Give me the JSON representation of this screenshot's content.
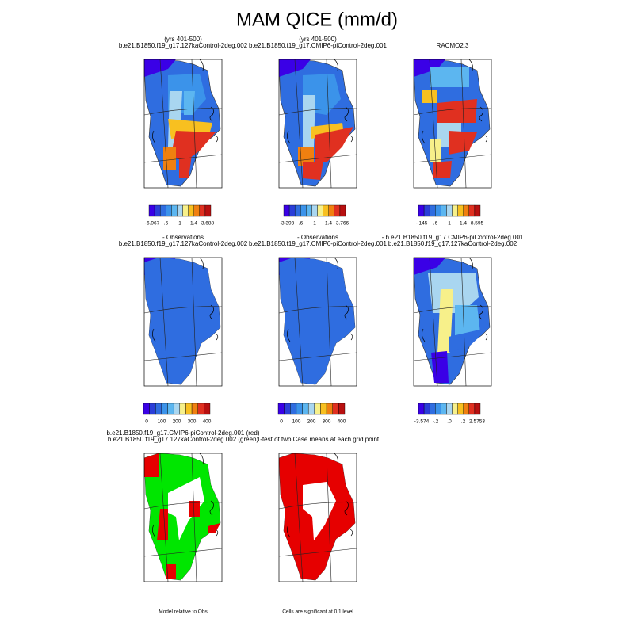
{
  "title": "MAM QICE (mm/d)",
  "panels": [
    {
      "title": [
        "b.e21.B1850.f19_g17.127kaControl-2deg.002",
        "(yrs 401-500)"
      ],
      "colorbar_labels": [
        "-6.967",
        ".6",
        "1",
        "1.4",
        "3.688"
      ]
    },
    {
      "title": [
        "b.e21.B1850.f19_g17.CMIP6-piControl-2deg.001",
        "(yrs 401-500)"
      ],
      "colorbar_labels": [
        "-3.393",
        ".6",
        "1",
        "1.4",
        "3.766"
      ]
    },
    {
      "title": [
        "RACMO2.3"
      ],
      "colorbar_labels": [
        "-.145",
        ".6",
        "1",
        "1.4",
        "8.595"
      ]
    },
    {
      "title": [
        "b.e21.B1850.f19_g17.127kaControl-2deg.002",
        "- Observations"
      ],
      "colorbar_labels": [
        "0",
        "100",
        "200",
        "300",
        "400"
      ]
    },
    {
      "title": [
        "b.e21.B1850.f19_g17.CMIP6-piControl-2deg.001",
        "- Observations"
      ],
      "colorbar_labels": [
        "0",
        "100",
        "200",
        "300",
        "400"
      ]
    },
    {
      "title": [
        "b.e21.B1850.f19_g17.127kaControl-2deg.002",
        "- b.e21.B1850.f19_g17.CMIP6-piControl-2deg.001"
      ],
      "colorbar_labels": [
        "-3.574",
        "-.2",
        ".0",
        ".2",
        "2.5753"
      ]
    },
    {
      "title": [
        "b.e21.B1850.f19_g17.127kaControl-2deg.002 (green)",
        "b.e21.B1850.f19_g17.CMIP6-piControl-2deg.001 (red)"
      ],
      "note": "Model relative to Obs"
    },
    {
      "title": [
        "T-test of two Case means at each grid point"
      ],
      "note": "Cells are significant at 0.1 level"
    }
  ]
}
